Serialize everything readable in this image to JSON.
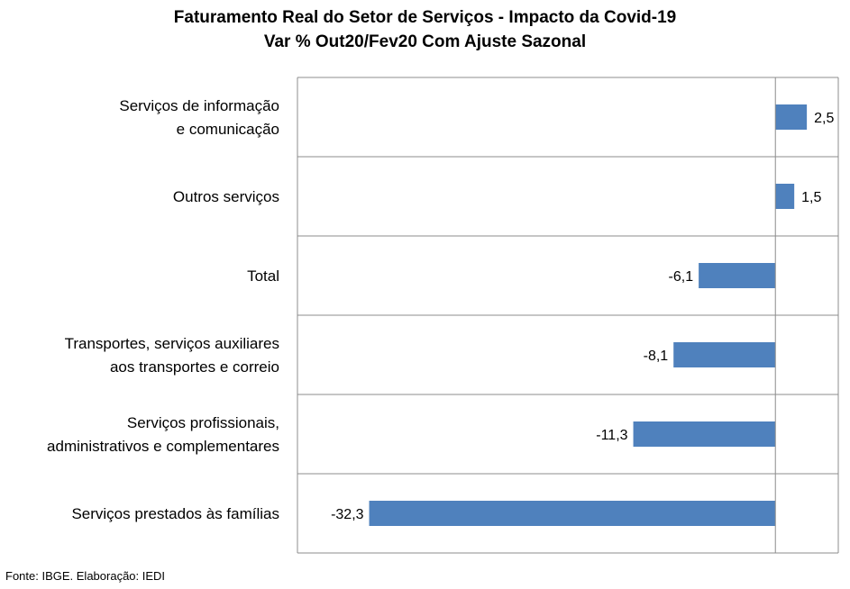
{
  "chart_data": {
    "type": "bar",
    "orientation": "horizontal",
    "title": "Faturamento Real do Setor de Serviços - Impacto da Covid-19",
    "subtitle": "Var % Out20/Fev20 Com Ajuste Sazonal",
    "categories": [
      [
        "Serviços de informação",
        "e comunicação"
      ],
      [
        "Outros serviços"
      ],
      [
        "Total"
      ],
      [
        "Transportes, serviços auxiliares",
        "aos transportes e correio"
      ],
      [
        "Serviços profissionais,",
        "administrativos e complementares"
      ],
      [
        "Serviços prestados às famílias"
      ]
    ],
    "values": [
      2.5,
      1.5,
      -6.1,
      -8.1,
      -11.3,
      -32.3
    ],
    "value_labels": [
      "2,5",
      "1,5",
      "-6,1",
      "-8,1",
      "-11,3",
      "-32,3"
    ],
    "xlim": [
      -38,
      5
    ],
    "bar_color": "#4f81bd",
    "grid": "horizontal separators between categories",
    "legend": "none"
  },
  "footer": {
    "source": "Fonte: IBGE. Elaboração: IEDI"
  }
}
